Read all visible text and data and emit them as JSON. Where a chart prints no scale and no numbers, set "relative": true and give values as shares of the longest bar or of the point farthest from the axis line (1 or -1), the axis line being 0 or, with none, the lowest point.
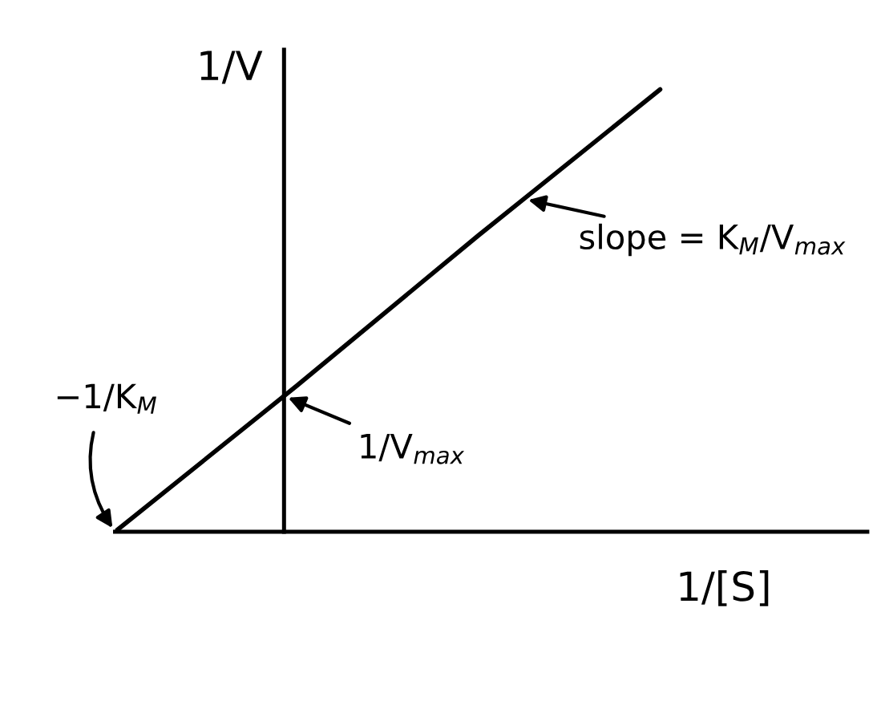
{
  "chart_data": {
    "type": "line",
    "relative": true,
    "xlabel": "1/[S]",
    "ylabel": "1/V",
    "categories": [
      null,
      null,
      null,
      null
    ],
    "series": [
      {
        "color": "#000000",
        "values": [
          0,
          0.33,
          0.67,
          1
        ]
      }
    ],
    "annotations": [
      "−1/K$_{M}$",
      "1/V$_{max}$",
      "slope = K$_{M}$/V$_{max}$"
    ]
  }
}
